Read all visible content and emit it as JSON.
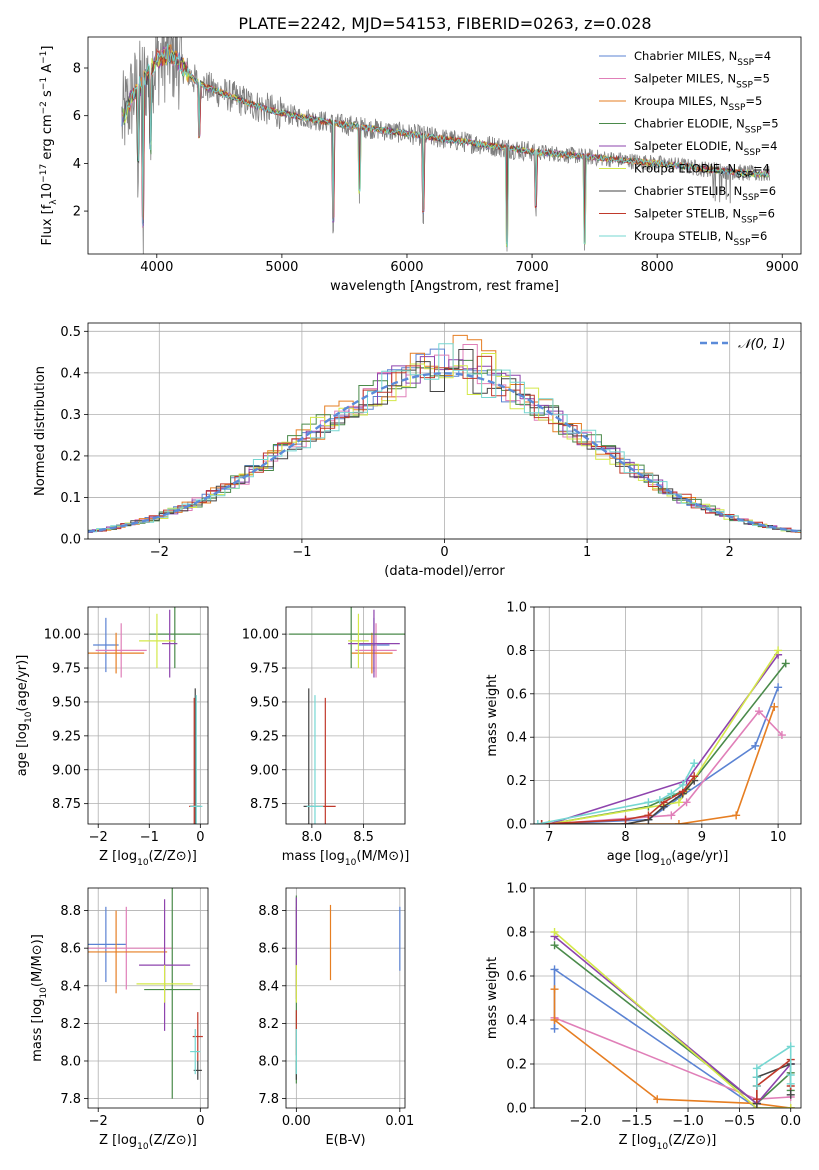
{
  "figure_title": "PLATE=2242, MJD=54153, FIBERID=0263, z=0.028",
  "colors": {
    "chabrier_miles": "#5b83d3",
    "salpeter_miles": "#e07fb8",
    "kroupa_miles": "#e67e22",
    "chabrier_elodie": "#4a8a4a",
    "salpeter_elodie": "#8e44ad",
    "kroupa_elodie": "#d4e84a",
    "chabrier_stelib": "#444444",
    "salpeter_stelib": "#c0392b",
    "kroupa_stelib": "#76d7d2",
    "data": "#7f7f7f",
    "normal": "#5b8bd9",
    "grid": "#b0b0b0"
  },
  "chart_data": [
    {
      "id": "spectrum",
      "type": "line",
      "title": "PLATE=2242, MJD=54153, FIBERID=0263, z=0.028",
      "xlabel": "wavelength [Angstrom, rest frame]",
      "ylabel": "Flux [f_λ 10^-17 erg cm^-2 s^-1 A^-1]",
      "xlim": [
        3450,
        9150
      ],
      "ylim": [
        0.2,
        9.3
      ],
      "xticks": [
        4000,
        5000,
        6000,
        7000,
        8000,
        9000
      ],
      "yticks": [
        2,
        4,
        6,
        8
      ],
      "grid": false,
      "legend_position": "top-right",
      "legend": [
        {
          "label": "Chabrier MILES, N",
          "sub": "SSP",
          "suffix": "=4",
          "color_key": "chabrier_miles"
        },
        {
          "label": "Salpeter MILES, N",
          "sub": "SSP",
          "suffix": "=5",
          "color_key": "salpeter_miles"
        },
        {
          "label": "Kroupa MILES, N",
          "sub": "SSP",
          "suffix": "=5",
          "color_key": "kroupa_miles"
        },
        {
          "label": "Chabrier ELODIE, N",
          "sub": "SSP",
          "suffix": "=5",
          "color_key": "chabrier_elodie"
        },
        {
          "label": "Salpeter ELODIE, N",
          "sub": "SSP",
          "suffix": "=4",
          "color_key": "salpeter_elodie"
        },
        {
          "label": "Kroupa ELODIE, N",
          "sub": "SSP",
          "suffix": "=4",
          "color_key": "kroupa_elodie"
        },
        {
          "label": "Chabrier STELIB, N",
          "sub": "SSP",
          "suffix": "=6",
          "color_key": "chabrier_stelib"
        },
        {
          "label": "Salpeter STELIB, N",
          "sub": "SSP",
          "suffix": "=6",
          "color_key": "salpeter_stelib"
        },
        {
          "label": "Kroupa STELIB, N",
          "sub": "SSP",
          "suffix": "=6",
          "color_key": "kroupa_stelib"
        }
      ],
      "continuum": {
        "x": [
          3700,
          3800,
          3900,
          4000,
          4100,
          4200,
          4300,
          4400,
          4600,
          4800,
          5000,
          5200,
          5400,
          5600,
          5800,
          6000,
          6200,
          6400,
          6600,
          6800,
          7000,
          7200,
          7400,
          7600,
          7800,
          8000,
          8200,
          8400,
          8600,
          8800
        ],
        "y": [
          5.5,
          6.8,
          7.5,
          8.3,
          8.6,
          8.1,
          7.5,
          7.2,
          6.8,
          6.4,
          6.1,
          5.9,
          5.7,
          5.55,
          5.4,
          5.25,
          5.1,
          4.95,
          4.8,
          4.65,
          4.5,
          4.4,
          4.3,
          4.2,
          4.1,
          4.0,
          3.9,
          3.75,
          3.65,
          3.55
        ]
      },
      "absorption_features": [
        {
          "x": 3850,
          "depth": 3.2
        },
        {
          "x": 3890,
          "depth": 6.5
        },
        {
          "x": 3950,
          "depth": 3.5
        },
        {
          "x": 4340,
          "depth": 2.5
        },
        {
          "x": 5410,
          "depth": 4.5
        },
        {
          "x": 5620,
          "depth": 3.0
        },
        {
          "x": 6130,
          "depth": 3.5
        },
        {
          "x": 6800,
          "depth": 4.5
        },
        {
          "x": 7030,
          "depth": 2.5
        },
        {
          "x": 7420,
          "depth": 4.0
        }
      ]
    },
    {
      "id": "residuals",
      "type": "histogram",
      "xlabel": "(data-model)/error",
      "ylabel": "Normed distribution",
      "xlim": [
        -2.5,
        2.5
      ],
      "ylim": [
        0,
        0.52
      ],
      "xticks": [
        -2,
        -1,
        0,
        1,
        2
      ],
      "yticks": [
        0.0,
        0.1,
        0.2,
        0.3,
        0.4,
        0.5
      ],
      "grid": true,
      "legend_position": "top-right",
      "legend_label": "𝒩(0, 1)",
      "bin_width": 0.1
    },
    {
      "id": "age_vs_Z",
      "type": "errorbar",
      "xlabel": "Z [log10(Z/Z⊙)]",
      "ylabel": "age  [log10(age/yr)]",
      "xlim": [
        -2.2,
        0.15
      ],
      "ylim": [
        8.6,
        10.2
      ],
      "xticks": [
        -2,
        -1,
        0
      ],
      "yticks": [
        8.75,
        9.0,
        9.25,
        9.5,
        9.75,
        10.0
      ],
      "grid": true,
      "points": [
        {
          "color_key": "chabrier_miles",
          "x": -1.85,
          "xerr": 0.25,
          "y": 9.92,
          "yerr": 0.2
        },
        {
          "color_key": "salpeter_miles",
          "x": -1.55,
          "xerr": 0.5,
          "y": 9.88,
          "yerr": 0.2
        },
        {
          "color_key": "kroupa_miles",
          "x": -1.65,
          "xerr": 0.55,
          "y": 9.86,
          "yerr": 0.15
        },
        {
          "color_key": "chabrier_elodie",
          "x": -0.5,
          "xerr": 0.5,
          "y": 10.0,
          "yerr": 0.25
        },
        {
          "color_key": "salpeter_elodie",
          "x": -0.6,
          "xerr": 0.15,
          "y": 9.93,
          "yerr": 0.25
        },
        {
          "color_key": "kroupa_elodie",
          "x": -0.85,
          "xerr": 0.35,
          "y": 9.95,
          "yerr": 0.2
        },
        {
          "color_key": "chabrier_stelib",
          "x": -0.1,
          "xerr": 0.1,
          "y": 8.73,
          "yerr": 0.87
        },
        {
          "color_key": "salpeter_stelib",
          "x": -0.12,
          "xerr": 0.1,
          "y": 8.73,
          "yerr": 0.8
        },
        {
          "color_key": "kroupa_stelib",
          "x": -0.08,
          "xerr": 0.12,
          "y": 8.73,
          "yerr": 0.82
        }
      ]
    },
    {
      "id": "age_vs_mass",
      "type": "errorbar",
      "xlabel": "mass [log10(M/M⊙)]",
      "ylabel": "",
      "xlim": [
        7.75,
        8.9
      ],
      "ylim": [
        8.6,
        10.2
      ],
      "xticks": [
        8.0,
        8.5
      ],
      "yticks": [
        8.75,
        9.0,
        9.25,
        9.5,
        9.75,
        10.0
      ],
      "grid": true,
      "points": [
        {
          "color_key": "chabrier_miles",
          "x": 8.6,
          "xerr": 0.15,
          "y": 9.92,
          "yerr": 0.2
        },
        {
          "color_key": "salpeter_miles",
          "x": 8.62,
          "xerr": 0.2,
          "y": 9.88,
          "yerr": 0.2
        },
        {
          "color_key": "kroupa_miles",
          "x": 8.58,
          "xerr": 0.2,
          "y": 9.86,
          "yerr": 0.15
        },
        {
          "color_key": "chabrier_elodie",
          "x": 8.38,
          "xerr": 0.6,
          "y": 10.0,
          "yerr": 0.25
        },
        {
          "color_key": "salpeter_elodie",
          "x": 8.6,
          "xerr": 0.25,
          "y": 9.93,
          "yerr": 0.25
        },
        {
          "color_key": "kroupa_elodie",
          "x": 8.45,
          "xerr": 0.1,
          "y": 9.95,
          "yerr": 0.2
        },
        {
          "color_key": "chabrier_stelib",
          "x": 7.97,
          "xerr": 0.05,
          "y": 8.73,
          "yerr": 0.87
        },
        {
          "color_key": "salpeter_stelib",
          "x": 8.13,
          "xerr": 0.1,
          "y": 8.73,
          "yerr": 0.8
        },
        {
          "color_key": "kroupa_stelib",
          "x": 8.03,
          "xerr": 0.08,
          "y": 8.73,
          "yerr": 0.82
        }
      ]
    },
    {
      "id": "weight_vs_age",
      "type": "line",
      "xlabel": "age  [log10(age/yr)]",
      "ylabel": "mass weight",
      "xlim": [
        6.8,
        10.3
      ],
      "ylim": [
        0,
        1.0
      ],
      "xticks": [
        7,
        8,
        9,
        10
      ],
      "yticks": [
        0.0,
        0.2,
        0.4,
        0.6,
        0.8,
        1.0
      ],
      "grid": true,
      "series": [
        {
          "color_key": "chabrier_miles",
          "x": [
            7.0,
            8.3,
            8.7,
            9.7,
            10.0
          ],
          "y": [
            0.0,
            0.02,
            0.12,
            0.36,
            0.63
          ]
        },
        {
          "color_key": "salpeter_miles",
          "x": [
            7.0,
            8.6,
            8.8,
            9.75,
            10.05
          ],
          "y": [
            0.0,
            0.04,
            0.1,
            0.52,
            0.41
          ]
        },
        {
          "color_key": "kroupa_miles",
          "x": [
            7.0,
            8.7,
            9.45,
            9.95
          ],
          "y": [
            0.0,
            0.0,
            0.04,
            0.54
          ]
        },
        {
          "color_key": "chabrier_elodie",
          "x": [
            7.0,
            8.3,
            8.8,
            10.1
          ],
          "y": [
            0.0,
            0.08,
            0.16,
            0.74
          ]
        },
        {
          "color_key": "salpeter_elodie",
          "x": [
            7.0,
            8.8,
            10.0
          ],
          "y": [
            0.0,
            0.2,
            0.78
          ]
        },
        {
          "color_key": "kroupa_elodie",
          "x": [
            7.0,
            8.7,
            10.0
          ],
          "y": [
            0.0,
            0.1,
            0.8
          ]
        },
        {
          "color_key": "chabrier_stelib",
          "x": [
            6.9,
            8.0,
            8.3,
            8.5,
            8.75,
            8.9
          ],
          "y": [
            0.0,
            0.0,
            0.02,
            0.08,
            0.14,
            0.2
          ]
        },
        {
          "color_key": "salpeter_stelib",
          "x": [
            6.9,
            8.0,
            8.3,
            8.5,
            8.75,
            8.9
          ],
          "y": [
            0.0,
            0.02,
            0.04,
            0.1,
            0.15,
            0.22
          ]
        },
        {
          "color_key": "kroupa_stelib",
          "x": [
            6.85,
            8.3,
            8.45,
            8.6,
            8.75,
            8.9
          ],
          "y": [
            0.0,
            0.1,
            0.11,
            0.14,
            0.18,
            0.28
          ]
        }
      ]
    },
    {
      "id": "mass_vs_Z",
      "type": "errorbar",
      "xlabel": "Z [log10(Z/Z⊙)]",
      "ylabel": "mass [log10(M/M⊙)]",
      "xlim": [
        -2.2,
        0.15
      ],
      "ylim": [
        7.75,
        8.92
      ],
      "xticks": [
        -2,
        0
      ],
      "yticks": [
        7.8,
        8.0,
        8.2,
        8.4,
        8.6,
        8.8
      ],
      "grid": true,
      "points": [
        {
          "color_key": "chabrier_miles",
          "x": -1.85,
          "xerr": 0.4,
          "y": 8.62,
          "yerr": 0.2
        },
        {
          "color_key": "salpeter_miles",
          "x": -1.45,
          "xerr": 0.9,
          "y": 8.6,
          "yerr": 0.22
        },
        {
          "color_key": "kroupa_miles",
          "x": -1.65,
          "xerr": 1.0,
          "y": 8.58,
          "yerr": 0.22
        },
        {
          "color_key": "chabrier_elodie",
          "x": -0.55,
          "xerr": 0.55,
          "y": 8.38,
          "yerr": 0.58
        },
        {
          "color_key": "salpeter_elodie",
          "x": -0.7,
          "xerr": 0.5,
          "y": 8.51,
          "yerr": 0.35
        },
        {
          "color_key": "kroupa_elodie",
          "x": -0.7,
          "xerr": 0.55,
          "y": 8.41,
          "yerr": 0.1
        },
        {
          "color_key": "chabrier_stelib",
          "x": -0.05,
          "xerr": 0.08,
          "y": 7.95,
          "yerr": 0.05
        },
        {
          "color_key": "salpeter_stelib",
          "x": -0.05,
          "xerr": 0.1,
          "y": 8.13,
          "yerr": 0.13
        },
        {
          "color_key": "kroupa_stelib",
          "x": -0.1,
          "xerr": 0.1,
          "y": 8.05,
          "yerr": 0.12
        }
      ]
    },
    {
      "id": "mass_vs_ebv",
      "type": "errorbar",
      "xlabel": "E(B-V)",
      "ylabel": "",
      "xlim": [
        -0.001,
        0.0105
      ],
      "ylim": [
        7.75,
        8.92
      ],
      "xticks": [
        0.0,
        0.01
      ],
      "xtick_labels": [
        "0.00",
        "0.01"
      ],
      "yticks": [
        7.8,
        8.0,
        8.2,
        8.4,
        8.6,
        8.8
      ],
      "grid": true,
      "points": [
        {
          "color_key": "chabrier_miles",
          "x": 0.01,
          "xerr": 0.0,
          "y": 8.65,
          "yerr": 0.17
        },
        {
          "color_key": "salpeter_miles",
          "x": 0.0,
          "xerr": 0.0,
          "y": 8.6,
          "yerr": 0.22
        },
        {
          "color_key": "kroupa_miles",
          "x": 0.0033,
          "xerr": 0.0,
          "y": 8.63,
          "yerr": 0.2
        },
        {
          "color_key": "chabrier_elodie",
          "x": 0.0,
          "xerr": 0.0,
          "y": 8.38,
          "yerr": 0.5
        },
        {
          "color_key": "salpeter_elodie",
          "x": 0.0,
          "xerr": 0.0,
          "y": 8.6,
          "yerr": 0.27
        },
        {
          "color_key": "kroupa_elodie",
          "x": 0.0,
          "xerr": 0.0,
          "y": 8.41,
          "yerr": 0.1
        },
        {
          "color_key": "chabrier_stelib",
          "x": 0.0,
          "xerr": 0.0,
          "y": 7.95,
          "yerr": 0.05
        },
        {
          "color_key": "salpeter_stelib",
          "x": 0.0,
          "xerr": 0.0,
          "y": 8.15,
          "yerr": 0.12
        },
        {
          "color_key": "kroupa_stelib",
          "x": 0.0,
          "xerr": 0.0,
          "y": 8.05,
          "yerr": 0.12
        }
      ]
    },
    {
      "id": "weight_vs_Z",
      "type": "line",
      "xlabel": "Z [log10(Z/Z⊙)]",
      "ylabel": "mass weight",
      "xlim": [
        -2.5,
        0.1
      ],
      "ylim": [
        0,
        1.0
      ],
      "xticks": [
        -2.0,
        -1.5,
        -1.0,
        -0.5,
        0.0
      ],
      "xtick_labels": [
        "−2.0",
        "−1.5",
        "−1.0",
        "−0.5",
        "0.0"
      ],
      "yticks": [
        0.0,
        0.2,
        0.4,
        0.6,
        0.8,
        1.0
      ],
      "grid": true,
      "series": [
        {
          "color_key": "chabrier_miles",
          "x": [
            -2.3,
            -2.3,
            -0.33,
            0.0
          ],
          "y": [
            0.36,
            0.63,
            0.0,
            0.0
          ]
        },
        {
          "color_key": "salpeter_miles",
          "x": [
            -2.3,
            -0.33,
            0.0
          ],
          "y": [
            0.41,
            0.04,
            0.05
          ]
        },
        {
          "color_key": "kroupa_miles",
          "x": [
            -2.3,
            -2.3,
            -1.3,
            -0.33,
            0.0
          ],
          "y": [
            0.54,
            0.4,
            0.04,
            0.02,
            0.0
          ]
        },
        {
          "color_key": "chabrier_elodie",
          "x": [
            -2.3,
            -0.33,
            0.0,
            0.0
          ],
          "y": [
            0.74,
            0.02,
            0.16,
            0.08
          ]
        },
        {
          "color_key": "salpeter_elodie",
          "x": [
            -2.3,
            -0.33,
            0.0
          ],
          "y": [
            0.78,
            0.02,
            0.2
          ]
        },
        {
          "color_key": "kroupa_elodie",
          "x": [
            -2.3,
            -0.33,
            0.0
          ],
          "y": [
            0.8,
            0.0,
            0.0
          ]
        },
        {
          "color_key": "chabrier_stelib",
          "x": [
            -0.33,
            -0.33,
            0.0,
            0.0
          ],
          "y": [
            0.02,
            0.14,
            0.2,
            0.06
          ]
        },
        {
          "color_key": "salpeter_stelib",
          "x": [
            -0.33,
            -0.33,
            0.0,
            0.0
          ],
          "y": [
            0.04,
            0.1,
            0.22,
            0.1
          ]
        },
        {
          "color_key": "kroupa_stelib",
          "x": [
            -0.33,
            -0.33,
            -0.33,
            0.0,
            0.0,
            0.0
          ],
          "y": [
            0.1,
            0.14,
            0.18,
            0.28,
            0.15,
            0.11
          ]
        }
      ]
    }
  ]
}
